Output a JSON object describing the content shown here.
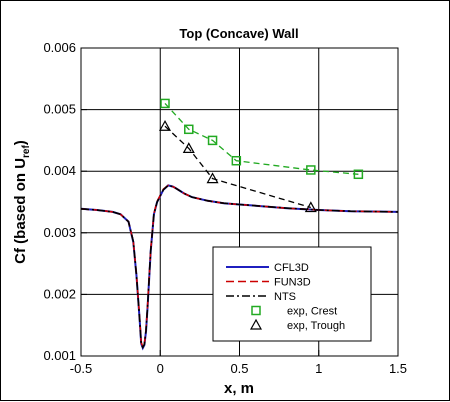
{
  "chart_data": {
    "type": "line",
    "title": "Top (Concave) Wall",
    "xlabel": "x, m",
    "ylabel_main": "Cf (based on U",
    "ylabel_sub": "ref",
    "ylabel_close": ")",
    "xlim": [
      -0.5,
      1.5
    ],
    "ylim": [
      0.001,
      0.006
    ],
    "xticks": [
      -0.5,
      0,
      0.5,
      1,
      1.5
    ],
    "xtick_labels": [
      "-0.5",
      "0",
      "0.5",
      "1",
      "1.5"
    ],
    "yticks": [
      0.001,
      0.002,
      0.003,
      0.004,
      0.005,
      0.006
    ],
    "ytick_labels": [
      "0.001",
      "0.002",
      "0.003",
      "0.004",
      "0.005",
      "0.006"
    ],
    "grid": true,
    "legend_position": "bottom-right",
    "series": [
      {
        "name": "CFL3D",
        "style": "solid",
        "color": "#1f1fbf",
        "x": [
          -0.5,
          -0.4,
          -0.3,
          -0.25,
          -0.2,
          -0.17,
          -0.15,
          -0.13,
          -0.12,
          -0.11,
          -0.1,
          -0.09,
          -0.08,
          -0.06,
          -0.04,
          -0.02,
          0.0,
          0.02,
          0.05,
          0.08,
          0.1,
          0.15,
          0.2,
          0.3,
          0.4,
          0.5,
          0.6,
          0.8,
          1.0,
          1.2,
          1.5
        ],
        "y": [
          0.00339,
          0.00337,
          0.00334,
          0.0033,
          0.00318,
          0.00285,
          0.0023,
          0.0016,
          0.0012,
          0.00113,
          0.00118,
          0.0014,
          0.0018,
          0.0027,
          0.0033,
          0.0035,
          0.0036,
          0.0037,
          0.00377,
          0.00375,
          0.00372,
          0.00364,
          0.00358,
          0.00352,
          0.00348,
          0.00346,
          0.00344,
          0.0034,
          0.00337,
          0.00335,
          0.00334
        ]
      },
      {
        "name": "FUN3D",
        "style": "dashed",
        "color": "#cc0000",
        "x": [
          -0.5,
          -0.4,
          -0.3,
          -0.25,
          -0.2,
          -0.17,
          -0.15,
          -0.13,
          -0.12,
          -0.11,
          -0.1,
          -0.09,
          -0.08,
          -0.06,
          -0.04,
          -0.02,
          0.0,
          0.02,
          0.05,
          0.08,
          0.1,
          0.15,
          0.2,
          0.3,
          0.4,
          0.5,
          0.6,
          0.8,
          1.0,
          1.2,
          1.5
        ],
        "y": [
          0.00339,
          0.00337,
          0.00334,
          0.0033,
          0.00318,
          0.00286,
          0.00231,
          0.00162,
          0.00122,
          0.00115,
          0.0012,
          0.00142,
          0.00182,
          0.00272,
          0.00331,
          0.00351,
          0.00361,
          0.00371,
          0.00377,
          0.00375,
          0.00372,
          0.00364,
          0.00358,
          0.00352,
          0.00348,
          0.00346,
          0.00344,
          0.0034,
          0.00337,
          0.00335,
          0.00334
        ]
      },
      {
        "name": "NTS",
        "style": "dashdot",
        "color": "#000000",
        "x": [
          -0.5,
          -0.4,
          -0.3,
          -0.25,
          -0.2,
          -0.17,
          -0.15,
          -0.13,
          -0.12,
          -0.11,
          -0.1,
          -0.09,
          -0.08,
          -0.06,
          -0.04,
          -0.02,
          0.0,
          0.02,
          0.05,
          0.08,
          0.1,
          0.15,
          0.2,
          0.3,
          0.4,
          0.5,
          0.6,
          0.8,
          1.0,
          1.2,
          1.5
        ],
        "y": [
          0.00339,
          0.00337,
          0.00334,
          0.0033,
          0.00318,
          0.00286,
          0.0023,
          0.0016,
          0.0012,
          0.00114,
          0.00119,
          0.00141,
          0.00181,
          0.00271,
          0.0033,
          0.0035,
          0.0036,
          0.0037,
          0.00377,
          0.00375,
          0.00372,
          0.00364,
          0.00358,
          0.00352,
          0.00348,
          0.00346,
          0.00344,
          0.0034,
          0.00337,
          0.00335,
          0.00334
        ]
      },
      {
        "name": "exp, Crest",
        "style": "markers",
        "marker": "square",
        "color": "#22aa22",
        "fit_style": "dashed",
        "fit_color": "#22aa22",
        "x": [
          0.03,
          0.18,
          0.33,
          0.48,
          0.95,
          1.25
        ],
        "y": [
          0.0051,
          0.00468,
          0.0045,
          0.00417,
          0.00402,
          0.00395
        ]
      },
      {
        "name": "exp, Trough",
        "style": "markers",
        "marker": "triangle",
        "color": "#000000",
        "fit_style": "dashed",
        "fit_color": "#000000",
        "x": [
          0.03,
          0.18,
          0.33,
          0.95
        ],
        "y": [
          0.00473,
          0.00437,
          0.00388,
          0.00341
        ]
      }
    ]
  }
}
